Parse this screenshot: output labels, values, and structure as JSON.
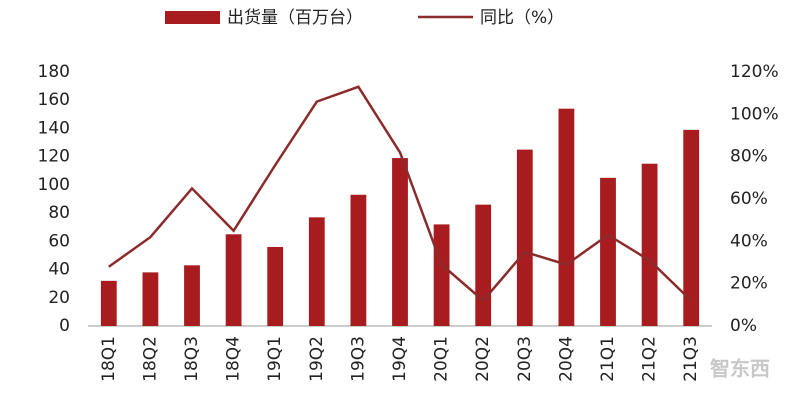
{
  "chart_data": {
    "type": "bar-line",
    "categories": [
      "18Q1",
      "18Q2",
      "18Q3",
      "18Q4",
      "19Q1",
      "19Q2",
      "19Q3",
      "19Q4",
      "20Q1",
      "20Q2",
      "20Q3",
      "20Q4",
      "21Q1",
      "21Q2",
      "21Q3"
    ],
    "series": [
      {
        "name": "出货量（百万台）",
        "type": "bar",
        "color": "#a81c1f",
        "values": [
          32,
          38,
          43,
          65,
          56,
          77,
          93,
          119,
          72,
          86,
          125,
          154,
          105,
          115,
          139
        ]
      },
      {
        "name": "同比（%）",
        "type": "line",
        "axis": "y2",
        "color": "#8c2b2b",
        "values": [
          28,
          42,
          65,
          45,
          76,
          106,
          113,
          82,
          29,
          12,
          35,
          29,
          43,
          31,
          12
        ]
      }
    ],
    "ylim": [
      0,
      180
    ],
    "yticks": [
      0,
      20,
      40,
      60,
      80,
      100,
      120,
      140,
      160,
      180
    ],
    "y2lim": [
      0,
      120
    ],
    "y2ticks": [
      {
        "value": 0,
        "label": "0%"
      },
      {
        "value": 20,
        "label": "20%"
      },
      {
        "value": 40,
        "label": "40%"
      },
      {
        "value": 60,
        "label": "60%"
      },
      {
        "value": 80,
        "label": "80%"
      },
      {
        "value": 100,
        "label": "100%"
      },
      {
        "value": 120,
        "label": "120%"
      }
    ],
    "legend": "top",
    "watermark": "智东西"
  }
}
